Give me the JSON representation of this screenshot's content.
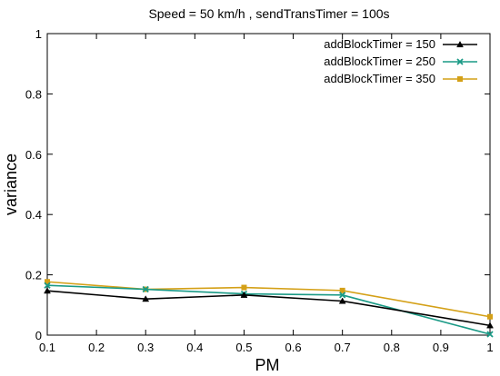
{
  "chart_data": {
    "type": "line",
    "title": "Speed = 50 km/h , sendTransTimer = 100s",
    "xlabel": "PM",
    "ylabel": "variance",
    "xlim": [
      0.1,
      1
    ],
    "ylim": [
      0,
      1
    ],
    "x_ticks": [
      0.1,
      0.2,
      0.3,
      0.4,
      0.5,
      0.6,
      0.7,
      0.8,
      0.9,
      1
    ],
    "x_tick_labels": [
      "0.1",
      "0.2",
      "0.3",
      "0.4",
      "0.5",
      "0.6",
      "0.7",
      "0.8",
      "0.9",
      "1"
    ],
    "y_ticks": [
      0,
      0.2,
      0.4,
      0.6,
      0.8,
      1
    ],
    "y_tick_labels": [
      "0",
      "0.2",
      "0.4",
      "0.6",
      "0.8",
      "1"
    ],
    "legend_position": "top-right",
    "grid": false,
    "x": [
      0.1,
      0.3,
      0.5,
      0.7,
      1
    ],
    "series": [
      {
        "name": "addBlockTimer = 150",
        "color": "#000000",
        "marker": "triangle",
        "values": [
          0.147,
          0.12,
          0.133,
          0.113,
          0.032
        ]
      },
      {
        "name": "addBlockTimer = 250",
        "color": "#1a9a86",
        "marker": "x",
        "values": [
          0.165,
          0.152,
          0.137,
          0.133,
          0.003
        ]
      },
      {
        "name": "addBlockTimer = 350",
        "color": "#d4a017",
        "marker": "square",
        "values": [
          0.177,
          0.152,
          0.158,
          0.148,
          0.061
        ]
      }
    ]
  }
}
